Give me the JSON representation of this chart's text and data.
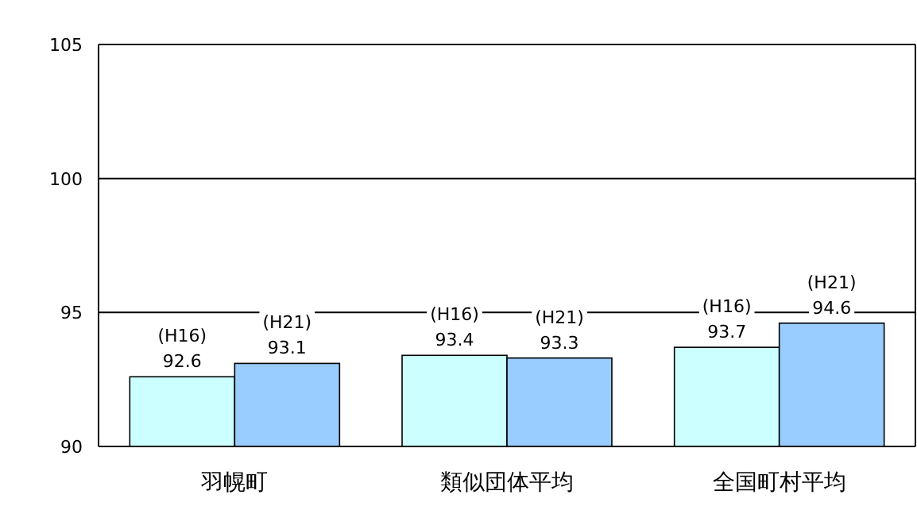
{
  "chart_data": {
    "type": "bar",
    "categories": [
      "羽幌町",
      "類似団体平均",
      "全国町村平均"
    ],
    "series": [
      {
        "name": "(H16)",
        "color": "#ccffff",
        "values": [
          92.6,
          93.4,
          93.7
        ]
      },
      {
        "name": "(H21)",
        "color": "#99ccff",
        "values": [
          93.1,
          93.3,
          94.6
        ]
      }
    ],
    "ylim": [
      90,
      105
    ],
    "yticks": [
      90,
      95,
      100,
      105
    ],
    "grid": "y",
    "data_labels": true
  }
}
